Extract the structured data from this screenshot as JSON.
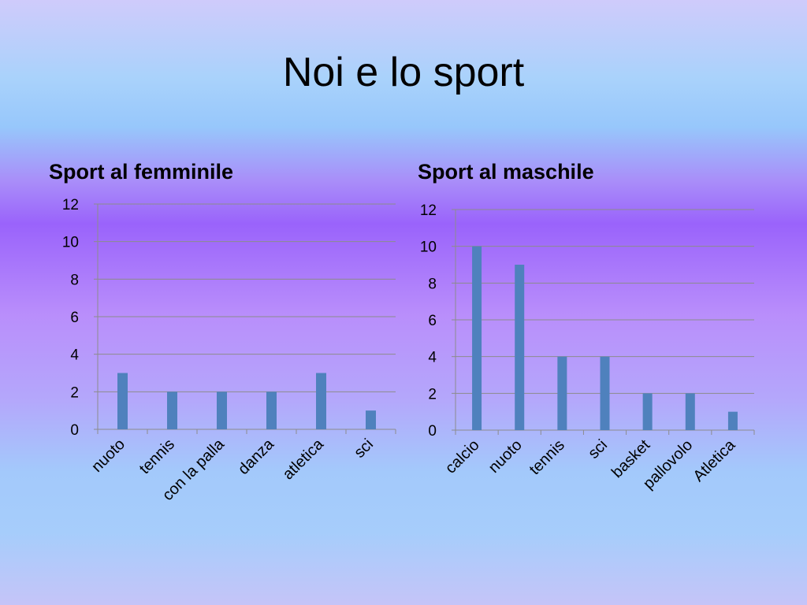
{
  "slide": {
    "title": "Noi e lo sport"
  },
  "chart_data": [
    {
      "type": "bar",
      "title": "Sport al femminile",
      "categories": [
        "nuoto",
        "tennis",
        "con la palla",
        "danza",
        "atletica",
        "sci"
      ],
      "values": [
        3,
        2,
        2,
        2,
        3,
        1
      ],
      "ylim": [
        0,
        12
      ],
      "yticks": [
        0,
        2,
        4,
        6,
        8,
        10,
        12
      ],
      "grid": true,
      "bar_color": "#4f81bd"
    },
    {
      "type": "bar",
      "title": "Sport al maschile",
      "categories": [
        "calcio",
        "nuoto",
        "tennis",
        "sci",
        "basket",
        "pallovolo",
        "Atletica"
      ],
      "values": [
        10,
        9,
        4,
        4,
        2,
        2,
        1
      ],
      "ylim": [
        0,
        12
      ],
      "yticks": [
        0,
        2,
        4,
        6,
        8,
        10,
        12
      ],
      "grid": true,
      "bar_color": "#4f81bd"
    }
  ]
}
